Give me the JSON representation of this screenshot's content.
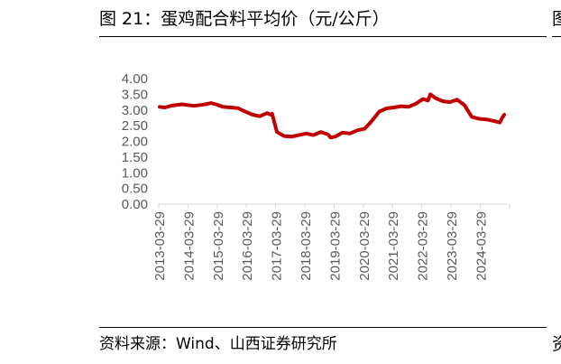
{
  "title": "图 21：蛋鸡配合料平均价（元/公斤）",
  "source": "资料来源：Wind、山西证券研究所",
  "edge_glyphs": {
    "top": "图",
    "bottom": "资"
  },
  "chart_data": {
    "type": "line",
    "title": "",
    "xlabel": "",
    "ylabel": "",
    "ylim": [
      0,
      4
    ],
    "yticks": [
      "0.00",
      "0.50",
      "1.00",
      "1.50",
      "2.00",
      "2.50",
      "3.00",
      "3.50",
      "4.00"
    ],
    "xticks": [
      "2013-03-29",
      "2014-03-29",
      "2015-03-29",
      "2016-03-29",
      "2017-03-29",
      "2018-03-29",
      "2019-03-29",
      "2020-03-29",
      "2021-03-29",
      "2022-03-29",
      "2023-03-29",
      "2024-03-29"
    ],
    "grid": false,
    "legend": "none",
    "colors": {
      "series": "#C00000",
      "axis": "#D9D9D9",
      "tick_text": "#595959"
    },
    "series": [
      {
        "x": [
          "2013-03-29",
          "2013-06-01",
          "2013-09-01",
          "2014-01-01",
          "2014-06-01",
          "2014-10-01",
          "2015-01-01",
          "2015-03-01",
          "2015-06-01",
          "2015-09-01",
          "2015-12-01",
          "2016-03-01",
          "2016-06-01",
          "2016-09-01",
          "2016-12-01",
          "2017-01-15",
          "2017-02-01",
          "2017-04-01",
          "2017-07-01",
          "2017-10-01",
          "2018-01-01",
          "2018-04-01",
          "2018-07-01",
          "2018-10-01",
          "2019-01-01",
          "2019-02-01",
          "2019-04-01",
          "2019-07-01",
          "2019-10-01",
          "2020-01-01",
          "2020-04-01",
          "2020-07-01",
          "2020-10-01",
          "2021-01-01",
          "2021-04-01",
          "2021-07-01",
          "2021-10-01",
          "2022-01-01",
          "2022-04-01",
          "2022-06-01",
          "2022-07-01",
          "2022-09-01",
          "2022-12-01",
          "2023-03-01",
          "2023-06-01",
          "2023-09-01",
          "2023-12-01",
          "2024-01-15",
          "2024-03-01",
          "2024-06-01",
          "2024-09-01",
          "2024-11-15",
          "2024-12-15",
          "2025-01-10"
        ],
        "values": [
          3.1,
          3.08,
          3.14,
          3.18,
          3.13,
          3.17,
          3.22,
          3.18,
          3.1,
          3.08,
          3.06,
          2.95,
          2.85,
          2.8,
          2.9,
          2.85,
          2.88,
          2.3,
          2.17,
          2.15,
          2.2,
          2.25,
          2.2,
          2.3,
          2.22,
          2.12,
          2.15,
          2.28,
          2.25,
          2.35,
          2.4,
          2.65,
          2.95,
          3.05,
          3.08,
          3.12,
          3.1,
          3.2,
          3.35,
          3.3,
          3.5,
          3.38,
          3.28,
          3.25,
          3.33,
          3.15,
          2.78,
          2.75,
          2.72,
          2.7,
          2.65,
          2.6,
          2.75,
          2.85
        ]
      }
    ]
  }
}
